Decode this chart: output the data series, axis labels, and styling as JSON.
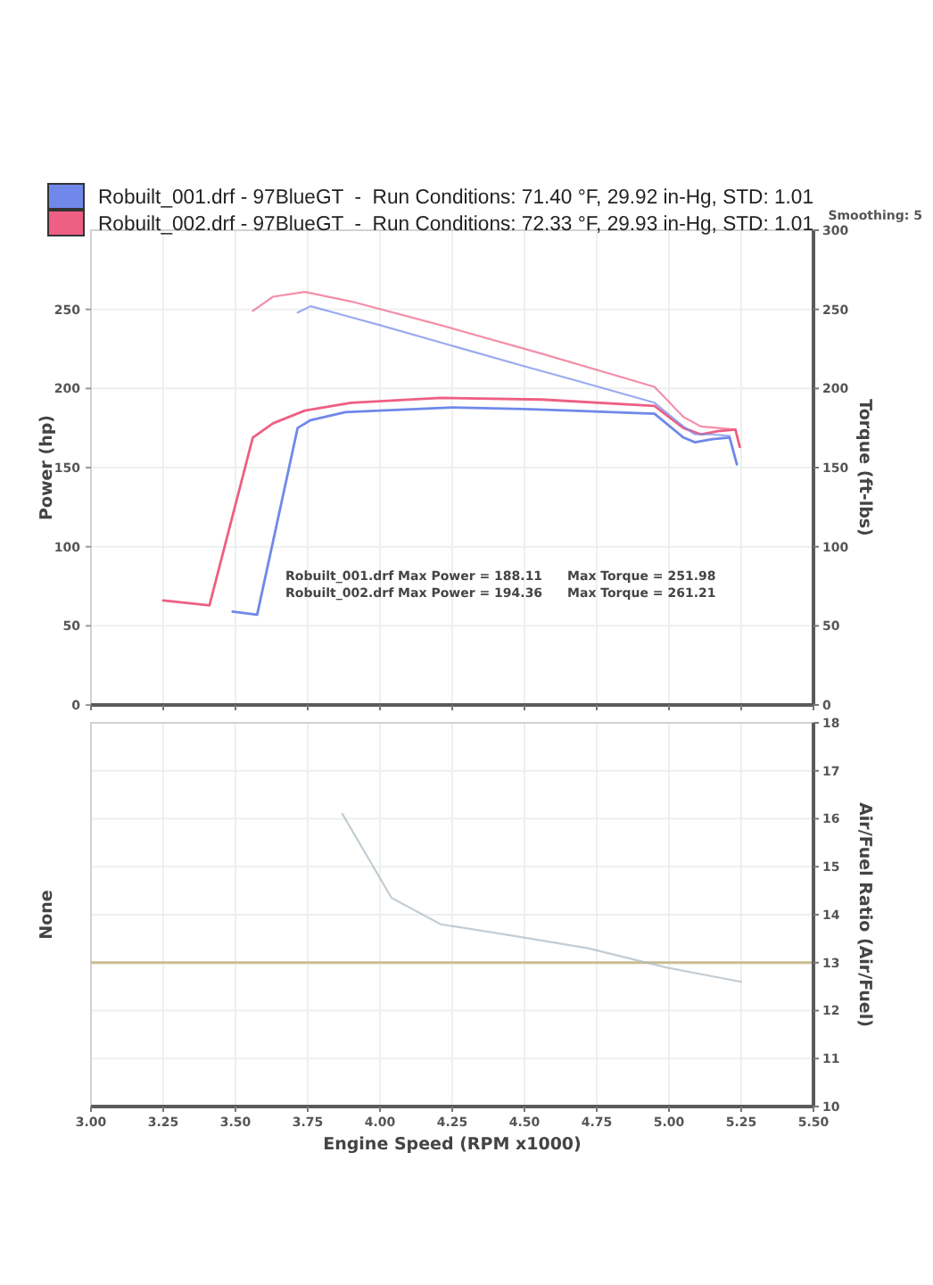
{
  "chart_data": [
    {
      "type": "line",
      "ylabel": "Power (hp)",
      "y2label": "Torque (ft-lbs)",
      "xlim": [
        3,
        5.5
      ],
      "xticks": [
        {
          "value": 3,
          "label": null
        },
        {
          "value": 3.25,
          "label": null
        },
        {
          "value": 3.5,
          "label": null
        },
        {
          "value": 3.75,
          "label": null
        },
        {
          "value": 4,
          "label": null
        },
        {
          "value": 4.25,
          "label": null
        },
        {
          "value": 4.5,
          "label": null
        },
        {
          "value": 4.75,
          "label": null
        },
        {
          "value": 5,
          "label": null
        },
        {
          "value": 5.25,
          "label": null
        },
        {
          "value": 5.5,
          "label": null
        }
      ],
      "ylim": [
        0,
        300
      ],
      "yticks": [
        0,
        50,
        100,
        150,
        200,
        250
      ],
      "y2lim": [
        0,
        300
      ],
      "y2ticks": [
        0,
        50,
        100,
        150,
        200,
        250,
        300
      ],
      "tick_labels": "y",
      "grid": true,
      "legend": "top",
      "annotations": [
        "Smoothing: 5",
        "Robuilt_001.drf Max Power = 188.11",
        "Max Torque = 251.98",
        "Robuilt_002.drf Max Power = 194.36",
        "Max Torque = 261.21"
      ],
      "series": [
        {
          "name": "Robuilt_001.drf - 97BlueGT  -  Run Conditions: 71.40 °F, 29.92 in-Hg, STD: 1.01",
          "color": "#7088ea",
          "x": [
            3.49,
            3.575,
            3.715,
            3.76,
            3.88,
            4.0,
            4.25,
            4.5,
            4.66,
            4.95,
            5.05,
            5.09,
            5.15,
            5.21,
            5.235
          ],
          "values": [
            59,
            57,
            175,
            180,
            185,
            186,
            188,
            187,
            186,
            184,
            169,
            166,
            168,
            169,
            152
          ]
        },
        {
          "name": "Robuilt_002.drf - 97BlueGT  -  Run Conditions: 72.33 °F, 29.93 in-Hg, STD: 1.01",
          "color": "#ee5f83",
          "x": [
            3.25,
            3.41,
            3.56,
            3.63,
            3.74,
            3.9,
            4.21,
            4.56,
            4.95,
            5.05,
            5.11,
            5.17,
            5.23,
            5.245
          ],
          "values": [
            66,
            63,
            169,
            178,
            186,
            191,
            194,
            193,
            189,
            175,
            171,
            173,
            174,
            163
          ]
        },
        {
          "color": "#7088ea",
          "axis": "y2",
          "x": [
            3.715,
            3.76,
            3.88,
            4.0,
            4.25,
            4.5,
            4.66,
            4.95,
            5.05,
            5.09,
            5.15,
            5.21
          ],
          "values": [
            248,
            252,
            246,
            240,
            227,
            214,
            206,
            191,
            176,
            171,
            171,
            170
          ]
        },
        {
          "color": "#ee5f83",
          "axis": "y2",
          "x": [
            3.56,
            3.63,
            3.74,
            3.9,
            4.21,
            4.56,
            4.95,
            5.05,
            5.11,
            5.17,
            5.23
          ],
          "values": [
            249,
            258,
            261,
            255,
            240,
            222,
            201,
            182,
            176,
            175,
            174
          ]
        }
      ]
    },
    {
      "type": "line",
      "xlabel": "Engine Speed (RPM x1000)",
      "ylabel": "None",
      "y2label": "Air/Fuel Ratio (Air/Fuel)",
      "xlim": [
        3,
        5.5
      ],
      "xticks": [
        {
          "value": 3,
          "label": "3.00"
        },
        {
          "value": 3.25,
          "label": "3.25"
        },
        {
          "value": 3.5,
          "label": "3.50"
        },
        {
          "value": 3.75,
          "label": "3.75"
        },
        {
          "value": 4,
          "label": "4.00"
        },
        {
          "value": 4.25,
          "label": "4.25"
        },
        {
          "value": 4.5,
          "label": "4.50"
        },
        {
          "value": 4.75,
          "label": "4.75"
        },
        {
          "value": 5,
          "label": "5.00"
        },
        {
          "value": 5.25,
          "label": "5.25"
        },
        {
          "value": 5.5,
          "label": "5.50"
        }
      ],
      "y2lim": [
        10,
        18
      ],
      "y2ticks": [
        10,
        11,
        12,
        13,
        14,
        15,
        16,
        17,
        18
      ],
      "grid": true,
      "ref_lines": [
        {
          "axis": "y2",
          "value": 13,
          "color": "#cbbd92"
        }
      ],
      "series": [
        {
          "color": "#a9b8c0",
          "axis": "y2",
          "x": [
            3.87,
            4.04,
            4.21,
            4.47,
            4.72,
            4.99,
            5.25
          ],
          "values": [
            16.1,
            14.35,
            13.8,
            13.55,
            13.3,
            12.9,
            12.6
          ]
        }
      ]
    }
  ]
}
